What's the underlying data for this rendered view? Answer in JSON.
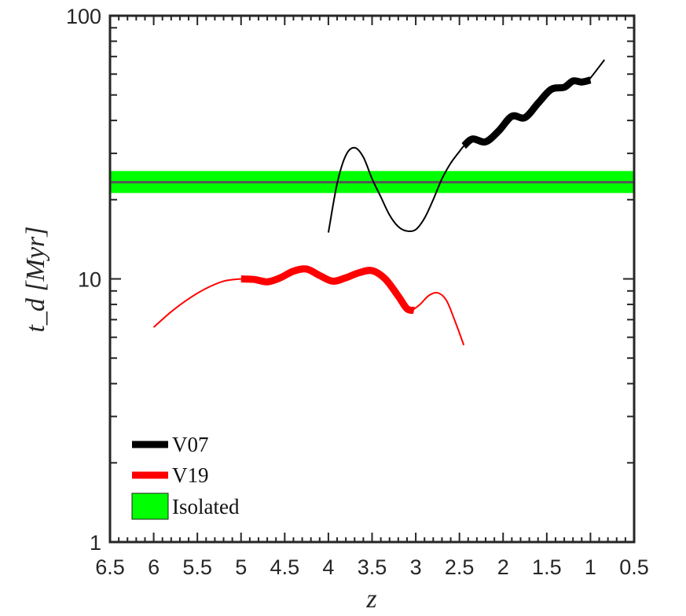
{
  "chart_data": {
    "type": "line",
    "xlabel": "z",
    "ylabel": "t_d  [Myr]",
    "xlim": [
      6.5,
      0.5
    ],
    "ylim": [
      1,
      100
    ],
    "yscale": "log",
    "x_ticks": [
      "6.5",
      "6",
      "5.5",
      "5",
      "4.5",
      "4",
      "3.5",
      "3",
      "2.5",
      "2",
      "1.5",
      "1",
      "0.5"
    ],
    "y_ticks": [
      "1",
      "10",
      "100"
    ],
    "legend_position": "bottom-left",
    "band": {
      "name": "Isolated",
      "color": "#00ff00",
      "line_color": "#555555",
      "center": 23.3,
      "low": 21.2,
      "high": 25.7
    },
    "series": [
      {
        "name": "V07",
        "color": "#000000",
        "thin_points": [
          [
            4.0,
            15.0
          ],
          [
            3.9,
            23.0
          ],
          [
            3.8,
            29.5
          ],
          [
            3.7,
            31.5
          ],
          [
            3.6,
            29.0
          ],
          [
            3.5,
            24.0
          ],
          [
            3.4,
            20.5
          ],
          [
            3.3,
            17.5
          ],
          [
            3.2,
            15.8
          ],
          [
            3.1,
            15.2
          ],
          [
            3.0,
            15.4
          ],
          [
            2.9,
            17.0
          ],
          [
            2.8,
            20.0
          ],
          [
            2.7,
            24.0
          ],
          [
            2.6,
            27.5
          ],
          [
            2.5,
            30.5
          ],
          [
            2.45,
            32.0
          ],
          [
            1.05,
            55.5
          ],
          [
            1.0,
            58.0
          ],
          [
            0.9,
            64.0
          ],
          [
            0.84,
            68.0
          ]
        ],
        "thick_points": [
          [
            2.45,
            32.0
          ],
          [
            2.35,
            34.0
          ],
          [
            2.2,
            33.2
          ],
          [
            2.05,
            36.5
          ],
          [
            1.9,
            41.5
          ],
          [
            1.75,
            41.0
          ],
          [
            1.6,
            46.5
          ],
          [
            1.45,
            52.5
          ],
          [
            1.3,
            53.5
          ],
          [
            1.2,
            56.5
          ],
          [
            1.1,
            56.0
          ],
          [
            1.0,
            57.0
          ]
        ]
      },
      {
        "name": "V19",
        "color": "#ff0000",
        "thin_points": [
          [
            6.0,
            6.55
          ],
          [
            5.8,
            7.5
          ],
          [
            5.6,
            8.4
          ],
          [
            5.4,
            9.2
          ],
          [
            5.2,
            9.8
          ],
          [
            5.0,
            10.0
          ],
          [
            3.05,
            7.55
          ],
          [
            2.95,
            8.0
          ],
          [
            2.85,
            8.65
          ],
          [
            2.75,
            8.85
          ],
          [
            2.65,
            8.3
          ],
          [
            2.55,
            6.9
          ],
          [
            2.45,
            5.6
          ]
        ],
        "thick_points": [
          [
            5.0,
            10.0
          ],
          [
            4.85,
            9.95
          ],
          [
            4.7,
            9.75
          ],
          [
            4.55,
            10.1
          ],
          [
            4.4,
            10.7
          ],
          [
            4.25,
            10.9
          ],
          [
            4.1,
            10.3
          ],
          [
            3.95,
            9.8
          ],
          [
            3.8,
            10.1
          ],
          [
            3.65,
            10.55
          ],
          [
            3.5,
            10.75
          ],
          [
            3.35,
            10.0
          ],
          [
            3.2,
            8.6
          ],
          [
            3.1,
            7.7
          ],
          [
            3.02,
            7.6
          ]
        ]
      }
    ]
  }
}
